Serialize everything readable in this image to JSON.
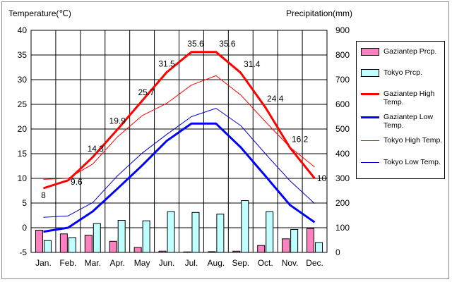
{
  "chart_data": {
    "type": "bar+line",
    "y_left_label": "Temperature(℃)",
    "y_right_label": "Precipitation(mm)",
    "y_left_range": [
      -5,
      40
    ],
    "y_left_ticks": [
      "-5",
      "0",
      "5",
      "10",
      "15",
      "20",
      "25",
      "30",
      "35",
      "40"
    ],
    "y_right_range": [
      0,
      900
    ],
    "y_right_ticks": [
      "0",
      "100",
      "200",
      "300",
      "400",
      "500",
      "600",
      "700",
      "800",
      "900"
    ],
    "categories": [
      "Jan.",
      "Feb.",
      "Mar.",
      "Apr.",
      "May",
      "Jun.",
      "Jul.",
      "Aug.",
      "Sep.",
      "Oct.",
      "Nov.",
      "Dec."
    ],
    "grid": true,
    "legend_position": "right",
    "bars": [
      {
        "name": "Gaziantep Prcp.",
        "color": "#ff80c0",
        "values": [
          90,
          75,
          70,
          45,
          20,
          5,
          2,
          3,
          5,
          28,
          55,
          97
        ]
      },
      {
        "name": "Tokyo Prcp.",
        "color": "#c0ffff",
        "values": [
          48,
          60,
          117,
          130,
          128,
          165,
          162,
          155,
          210,
          165,
          93,
          40
        ]
      }
    ],
    "lines": [
      {
        "name": "Gaziantep High Temp.",
        "color": "#ff0000",
        "width": 3,
        "values": [
          8,
          9.6,
          14.3,
          19.9,
          25.7,
          31.5,
          35.6,
          35.6,
          31.4,
          24.4,
          16.2,
          10
        ],
        "labels": [
          "8",
          "9.6",
          "14.3",
          "19.9",
          "25.7",
          "31.5",
          "35.6",
          "35.6",
          "31.4",
          "24.4",
          "16.2",
          "10"
        ]
      },
      {
        "name": "Gaziantep Low Temp.",
        "color": "#0000ff",
        "width": 3,
        "values": [
          -0.8,
          0,
          3.3,
          7.9,
          12.6,
          17.6,
          21.1,
          21.1,
          16.3,
          10.5,
          4.6,
          1.1
        ]
      },
      {
        "name": "Tokyo High Temp.",
        "color": "#ff0000",
        "width": 1,
        "values": [
          9.8,
          10,
          12.9,
          18.4,
          22.7,
          25.2,
          28.9,
          30.8,
          26.9,
          21.5,
          16.3,
          12.3
        ]
      },
      {
        "name": "Tokyo Low Temp.",
        "color": "#0000cc",
        "width": 1,
        "values": [
          2.1,
          2.4,
          5.1,
          10.5,
          15.1,
          18.9,
          22.5,
          24.2,
          20.7,
          15,
          9.5,
          4.9
        ]
      }
    ]
  }
}
